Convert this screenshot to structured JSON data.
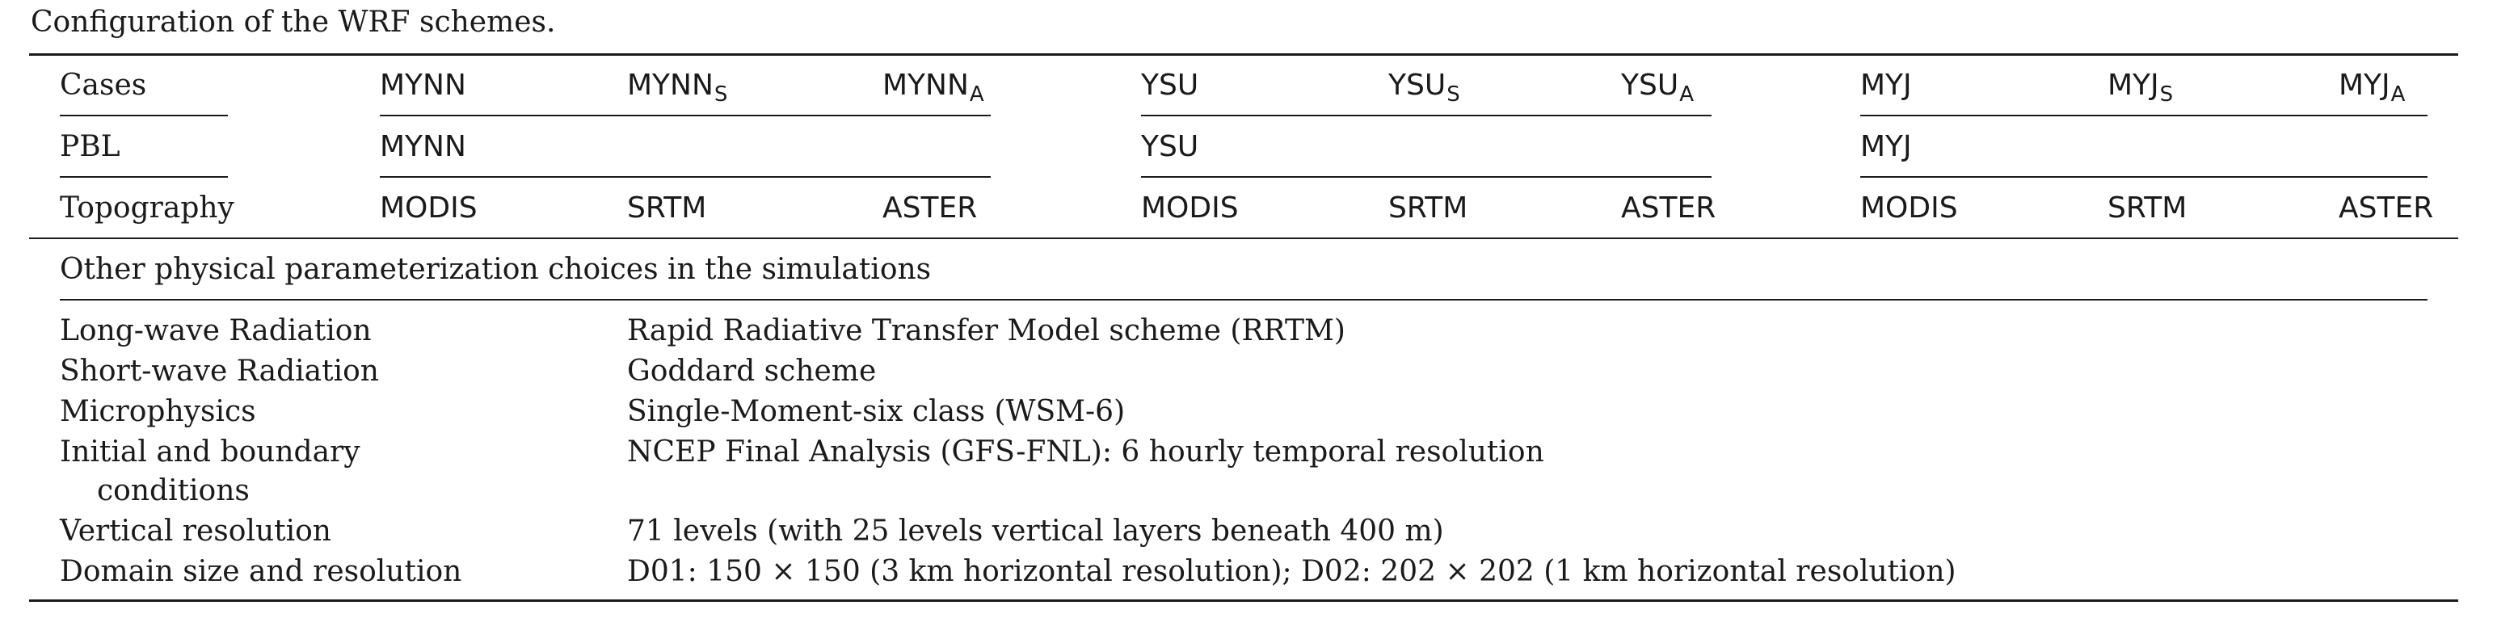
{
  "caption": "Configuration of the WRF schemes.",
  "table": {
    "cases_label": "Cases",
    "cases": [
      {
        "base": "MYNN",
        "sub": ""
      },
      {
        "base": "MYNN",
        "sub": "S"
      },
      {
        "base": "MYNN",
        "sub": "A"
      },
      {
        "base": "YSU",
        "sub": ""
      },
      {
        "base": "YSU",
        "sub": "S"
      },
      {
        "base": "YSU",
        "sub": "A"
      },
      {
        "base": "MYJ",
        "sub": ""
      },
      {
        "base": "MYJ",
        "sub": "S"
      },
      {
        "base": "MYJ",
        "sub": "A"
      }
    ],
    "pbl_label": "PBL",
    "pbl": [
      "MYNN",
      "YSU",
      "MYJ"
    ],
    "topography_label": "Topography",
    "topography": [
      "MODIS",
      "SRTM",
      "ASTER",
      "MODIS",
      "SRTM",
      "ASTER",
      "MODIS",
      "SRTM",
      "ASTER"
    ]
  },
  "other_heading": "Other physical parameterization choices in the simulations",
  "params": [
    {
      "label": "Long-wave Radiation",
      "value": "Rapid Radiative Transfer Model scheme (RRTM)"
    },
    {
      "label": "Short-wave Radiation",
      "value": "Goddard scheme"
    },
    {
      "label": "Microphysics",
      "value": "Single-Moment-six class (WSM-6)"
    },
    {
      "label": "Initial and boundary",
      "label_cont": "conditions",
      "value": "NCEP Final Analysis (GFS-FNL): 6 hourly temporal resolution"
    },
    {
      "label": "Vertical resolution",
      "value": "71 levels (with 25 levels vertical layers beneath 400 m)"
    },
    {
      "label": "Domain size and resolution",
      "value": "D01: 150 × 150 (3 km horizontal resolution); D02: 202 × 202 (1 km horizontal resolution)"
    }
  ]
}
